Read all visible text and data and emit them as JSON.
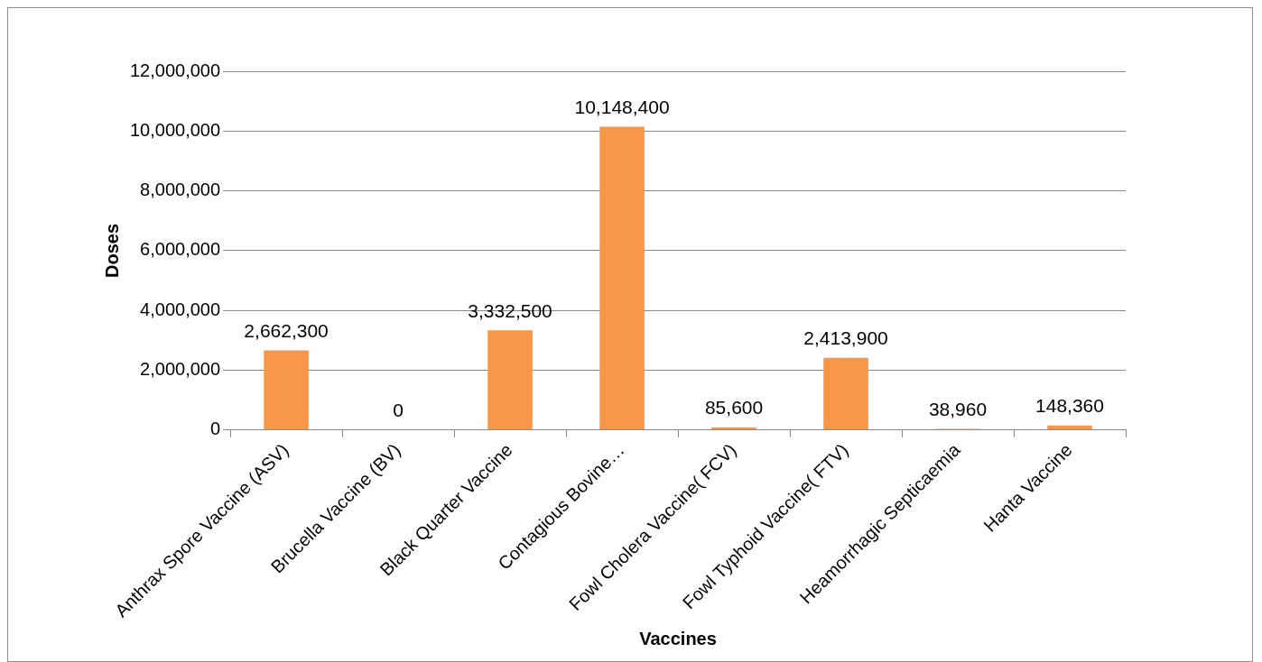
{
  "chart_data": {
    "type": "bar",
    "xlabel": "Vaccines",
    "ylabel": "Doses",
    "categories": [
      "Anthrax Spore Vaccine (ASV)",
      "Brucella Vaccine (BV)",
      "Black Quarter Vaccine",
      "Contagious Bovine…",
      "Fowl Cholera Vaccine( FCV)",
      "Fowl Typhoid Vaccine( FTV)",
      "Heamorrhagic Septicaemia",
      "Hanta Vaccine"
    ],
    "values": [
      2662300,
      0,
      3332500,
      10148400,
      85600,
      2413900,
      38960,
      148360
    ],
    "value_labels": [
      "2,662,300",
      "0",
      "3,332,500",
      "10,148,400",
      "85,600",
      "2,413,900",
      "38,960",
      "148,360"
    ],
    "color": "#f79646",
    "ylim": [
      0,
      12000000
    ],
    "yticks": [
      {
        "value": 0,
        "label": "0"
      },
      {
        "value": 2000000,
        "label": "2,000,000"
      },
      {
        "value": 4000000,
        "label": "4,000,000"
      },
      {
        "value": 6000000,
        "label": "6,000,000"
      },
      {
        "value": 8000000,
        "label": "8,000,000"
      },
      {
        "value": 10000000,
        "label": "10,000,000"
      },
      {
        "value": 12000000,
        "label": "12,000,000"
      }
    ],
    "grid": "y",
    "legend": false
  }
}
